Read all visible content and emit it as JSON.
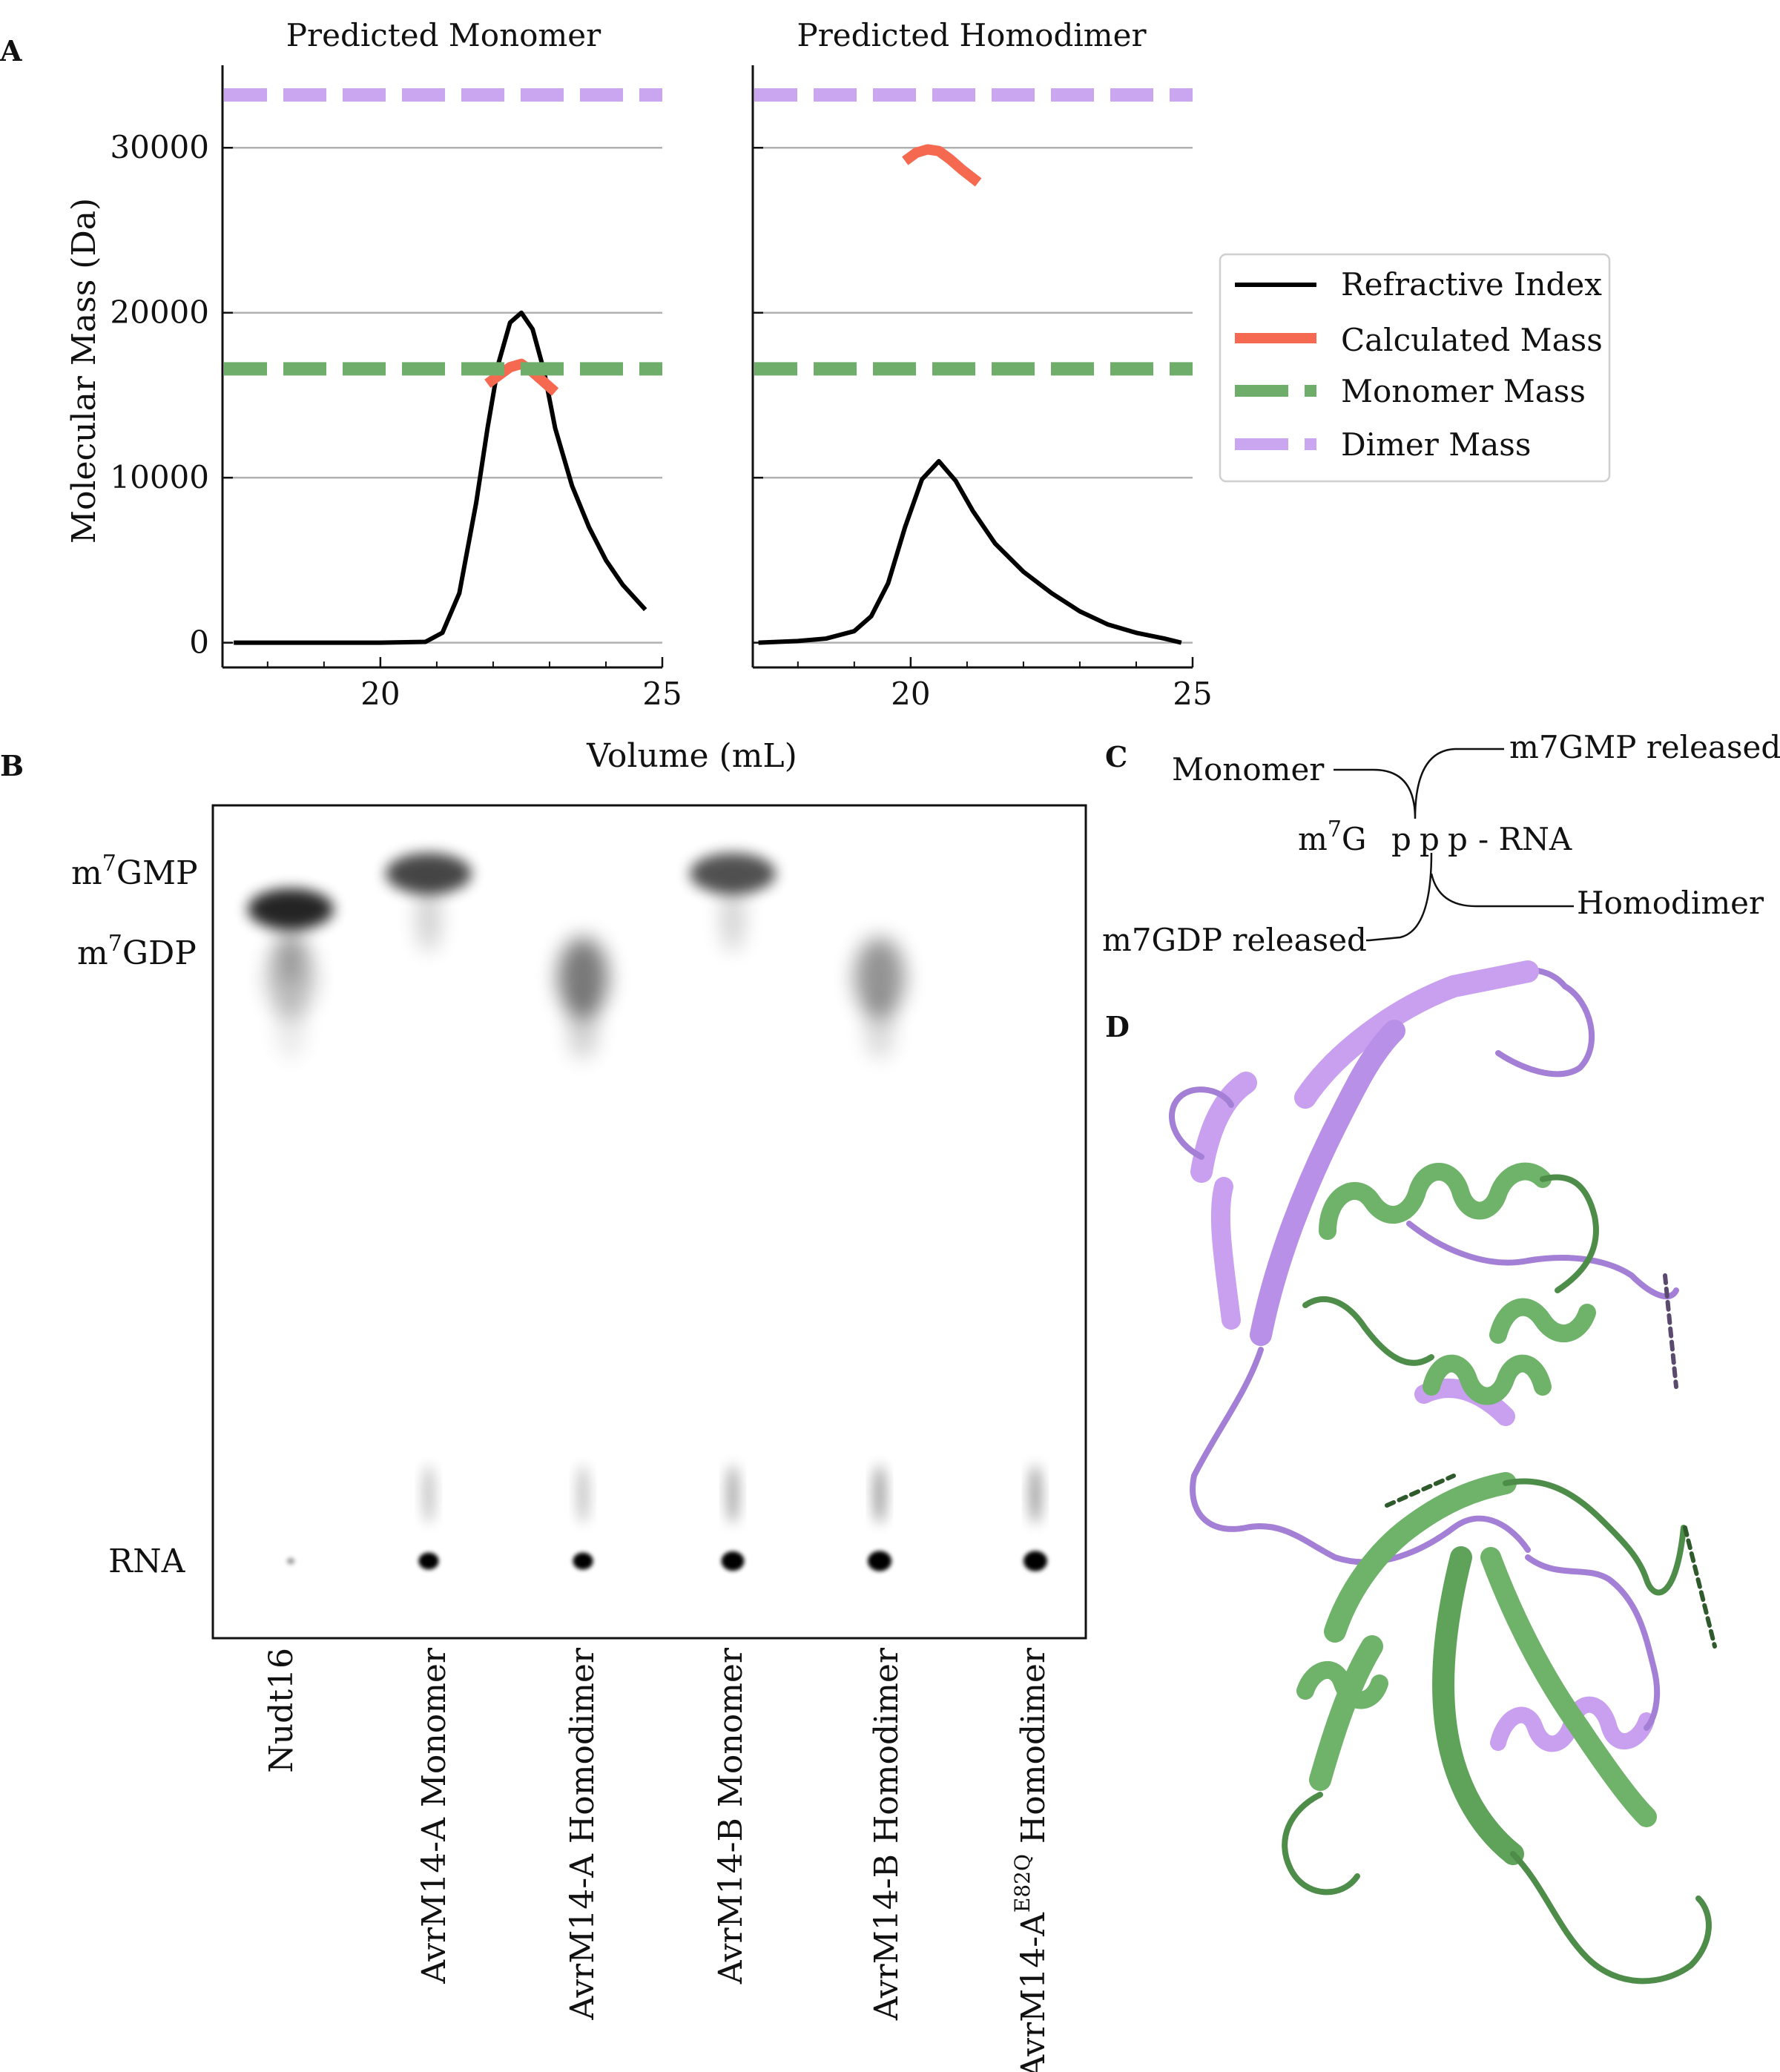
{
  "panels": {
    "A": {
      "letter": "A",
      "chart_data": [
        {
          "type": "line",
          "title": "Predicted Monomer",
          "xlabel": "Volume (mL)",
          "ylabel": "Molecular Mass (Da)",
          "xlim": [
            17.2,
            25
          ],
          "ylim": [
            -1500,
            35000
          ],
          "xticks": [
            "20",
            "25"
          ],
          "yticks": [
            "0",
            "10000",
            "20000",
            "30000"
          ],
          "grid": "horizontal",
          "series": [
            {
              "name": "Refractive Index",
              "color": "#000000",
              "x": [
                17.4,
                18,
                19,
                20,
                20.8,
                21.1,
                21.4,
                21.7,
                21.9,
                22.1,
                22.3,
                22.5,
                22.7,
                22.9,
                23.1,
                23.4,
                23.7,
                24.0,
                24.3,
                24.7
              ],
              "y": [
                0,
                0,
                0,
                0,
                50,
                600,
                3000,
                8500,
                13000,
                17000,
                19400,
                20000,
                19000,
                16500,
                13000,
                9500,
                7000,
                5000,
                3500,
                2000
              ]
            },
            {
              "name": "Calculated Mass",
              "color": "#f4694f",
              "x": [
                21.9,
                22.1,
                22.3,
                22.5,
                22.7,
                22.9,
                23.1
              ],
              "y": [
                15700,
                16200,
                16700,
                16900,
                16400,
                15800,
                15200
              ]
            },
            {
              "name": "Monomer Mass",
              "color": "#6fae6a",
              "dashed": true,
              "y": 16600
            },
            {
              "name": "Dimer Mass",
              "color": "#c9a6ef",
              "dashed": true,
              "y": 33200
            }
          ]
        },
        {
          "type": "line",
          "title": "Predicted Homodimer",
          "xlabel": "Volume (mL)",
          "xlim": [
            17.2,
            25
          ],
          "ylim": [
            -1500,
            35000
          ],
          "xticks": [
            "20",
            "25"
          ],
          "grid": "horizontal",
          "series": [
            {
              "name": "Refractive Index",
              "color": "#000000",
              "x": [
                17.3,
                18,
                18.5,
                19.0,
                19.3,
                19.6,
                19.9,
                20.2,
                20.5,
                20.8,
                21.1,
                21.5,
                22.0,
                22.5,
                23.0,
                23.5,
                24.0,
                24.5,
                24.8
              ],
              "y": [
                0,
                100,
                250,
                700,
                1600,
                3600,
                7000,
                9900,
                11000,
                9800,
                8000,
                6000,
                4300,
                3000,
                1900,
                1100,
                600,
                250,
                0
              ]
            },
            {
              "name": "Calculated Mass",
              "color": "#f4694f",
              "x": [
                19.9,
                20.1,
                20.3,
                20.5,
                20.7,
                20.9,
                21.2
              ],
              "y": [
                29200,
                29700,
                29900,
                29800,
                29300,
                28700,
                27900
              ]
            },
            {
              "name": "Monomer Mass",
              "color": "#6fae6a",
              "dashed": true,
              "y": 16600
            },
            {
              "name": "Dimer Mass",
              "color": "#c9a6ef",
              "dashed": true,
              "y": 33200
            }
          ]
        }
      ],
      "legend": {
        "placement": "right",
        "items": [
          {
            "label": "Refractive Index",
            "color": "#000000",
            "style": "solid"
          },
          {
            "label": "Calculated Mass",
            "color": "#f4694f",
            "style": "solid"
          },
          {
            "label": "Monomer Mass",
            "color": "#6fae6a",
            "style": "dashed"
          },
          {
            "label": "Dimer Mass",
            "color": "#c9a6ef",
            "style": "dashed"
          }
        ]
      }
    },
    "B": {
      "letter": "B",
      "band_labels": {
        "gmp": {
          "base": "m",
          "sup": "7",
          "rest": "GMP"
        },
        "gdp": {
          "base": "m",
          "sup": "7",
          "rest": "GDP"
        },
        "rna": "RNA"
      },
      "lanes": [
        {
          "label": "Nudt16",
          "spots": [
            {
              "band": "gmp_low",
              "intensity": 1.0
            },
            {
              "band": "gdp",
              "intensity": 0.35
            },
            {
              "band": "rna",
              "intensity": 0.1
            }
          ]
        },
        {
          "label": "AvrM14-A Monomer",
          "spots": [
            {
              "band": "gmp",
              "intensity": 0.85
            },
            {
              "band": "rna",
              "intensity": 0.8
            }
          ]
        },
        {
          "label": "AvrM14-A Homodimer",
          "spots": [
            {
              "band": "gdp",
              "intensity": 0.75
            },
            {
              "band": "rna",
              "intensity": 0.8
            }
          ]
        },
        {
          "label": "AvrM14-B Monomer",
          "spots": [
            {
              "band": "gmp",
              "intensity": 0.8
            },
            {
              "band": "rna",
              "intensity": 0.95
            }
          ]
        },
        {
          "label": "AvrM14-B Homodimer",
          "spots": [
            {
              "band": "gdp",
              "intensity": 0.6
            },
            {
              "band": "rna",
              "intensity": 1.0
            }
          ]
        },
        {
          "label_base": "AvrM14-A",
          "label_sup": "E82Q",
          "label_rest": " Homodimer",
          "spots": [
            {
              "band": "rna",
              "intensity": 1.0
            }
          ]
        }
      ]
    },
    "C": {
      "letter": "C",
      "monomer": "Monomer",
      "gmp_released": "m7GMP released",
      "cap": {
        "m": "m",
        "sup": "7",
        "g": "G",
        "p1": "p",
        "p2": "p",
        "p3": "p",
        "rna": "- RNA"
      },
      "homodimer": "Homodimer",
      "gdp_released": "m7GDP released"
    },
    "D": {
      "letter": "D",
      "chain_colors": {
        "chain_a": "#c9a0ef",
        "chain_b": "#5fa35a"
      }
    }
  }
}
